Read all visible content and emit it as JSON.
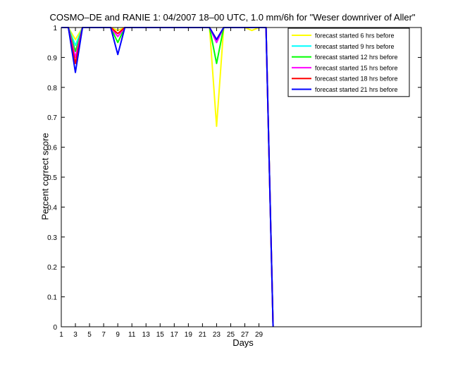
{
  "chart_data": {
    "type": "line",
    "title": "COSMO–DE and RANIE 1: 04/2007 18–00 UTC, 1.0 mm/6h for \"Weser downriver of Aller\"",
    "xlabel": "Days",
    "ylabel": "Percent correct score",
    "xlim": [
      1,
      52
    ],
    "ylim": [
      0,
      1
    ],
    "xticks": [
      1,
      3,
      5,
      7,
      9,
      11,
      13,
      15,
      17,
      19,
      21,
      23,
      25,
      27,
      29
    ],
    "yticks": [
      0,
      0.1,
      0.2,
      0.3,
      0.4,
      0.5,
      0.6,
      0.7,
      0.8,
      0.9,
      1
    ],
    "ytick_labels": [
      "0",
      "0.1",
      "0.2",
      "0.3",
      "0.4",
      "0.5",
      "0.6",
      "0.7",
      "0.8",
      "0.9",
      "1"
    ],
    "grid": false,
    "legend_position": "top-right",
    "x": [
      1,
      2,
      3,
      4,
      5,
      6,
      7,
      8,
      9,
      10,
      11,
      12,
      13,
      14,
      15,
      16,
      17,
      18,
      19,
      20,
      21,
      22,
      23,
      24,
      25,
      26,
      27,
      28,
      29,
      30,
      31
    ],
    "series": [
      {
        "name": "forecast started 6 hrs before",
        "color": "#ffff00",
        "values": [
          1,
          1,
          0.96,
          1,
          1,
          1,
          1,
          1,
          0.99,
          1,
          1,
          1,
          1,
          1,
          1,
          1,
          1,
          1,
          1,
          1,
          1,
          1,
          0.67,
          1,
          1,
          1,
          1,
          0.99,
          1,
          1,
          0
        ]
      },
      {
        "name": "forecast started 9 hrs before",
        "color": "#00ffff",
        "values": [
          1,
          1,
          0.94,
          1,
          1,
          1,
          1,
          1,
          0.97,
          1,
          1,
          1,
          1,
          1,
          1,
          1,
          1,
          1,
          1,
          1,
          1,
          1,
          0.95,
          1,
          1,
          1,
          1,
          1,
          1,
          1,
          0
        ]
      },
      {
        "name": "forecast started 12 hrs before",
        "color": "#00ff00",
        "values": [
          1,
          1,
          0.92,
          1,
          1,
          1,
          1,
          1,
          0.95,
          1,
          1,
          1,
          1,
          1,
          1,
          1,
          1,
          1,
          1,
          1,
          1,
          1,
          0.88,
          1,
          1,
          1,
          1,
          1,
          1,
          1,
          0
        ]
      },
      {
        "name": "forecast started 15 hrs before",
        "color": "#ff00ff",
        "values": [
          1,
          1,
          0.9,
          1,
          1,
          1,
          1,
          1,
          0.97,
          1,
          1,
          1,
          1,
          1,
          1,
          1,
          1,
          1,
          1,
          1,
          1,
          1,
          0.95,
          1,
          1,
          1,
          1,
          1,
          1,
          1,
          0
        ]
      },
      {
        "name": "forecast started 18 hrs before",
        "color": "#ff0000",
        "values": [
          1,
          1,
          0.88,
          1,
          1,
          1,
          1,
          1,
          0.98,
          1,
          1,
          1,
          1,
          1,
          1,
          1,
          1,
          1,
          1,
          1,
          1,
          1,
          0.96,
          1,
          1,
          1,
          1,
          1,
          1,
          1,
          0
        ]
      },
      {
        "name": "forecast started 21 hrs before",
        "color": "#0000ff",
        "values": [
          1,
          1,
          0.85,
          1,
          1,
          1,
          1,
          1,
          0.91,
          1,
          1,
          1,
          1,
          1,
          1,
          1,
          1,
          1,
          1,
          1,
          1,
          1,
          0.96,
          1,
          1,
          1,
          1,
          1,
          1,
          1,
          0
        ]
      }
    ]
  }
}
